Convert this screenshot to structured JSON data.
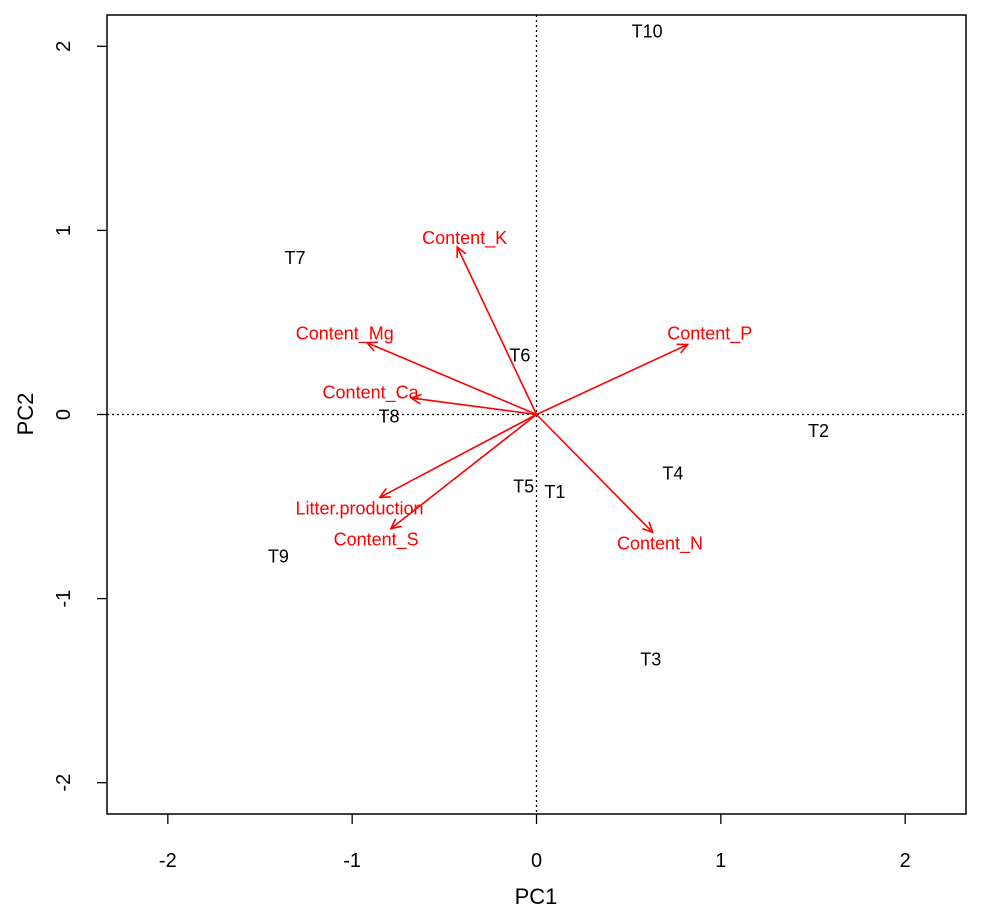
{
  "chart_data": {
    "type": "scatter",
    "subtype": "pca-biplot",
    "xlabel": "PC1",
    "ylabel": "PC2",
    "xlim": [
      -2.33,
      2.33
    ],
    "ylim": [
      -2.17,
      2.17
    ],
    "x_ticks": [
      -2,
      -1,
      0,
      1,
      2
    ],
    "y_ticks": [
      -2,
      -1,
      0,
      1,
      2
    ],
    "reference_lines": {
      "x": 0,
      "y": 0,
      "style": "dotted"
    },
    "grid": false,
    "legend": "none",
    "points": [
      {
        "label": "T10",
        "x": 0.6,
        "y": 2.08
      },
      {
        "label": "T7",
        "x": -1.31,
        "y": 0.85
      },
      {
        "label": "T6",
        "x": -0.09,
        "y": 0.32
      },
      {
        "label": "T8",
        "x": -0.8,
        "y": -0.01
      },
      {
        "label": "T2",
        "x": 1.53,
        "y": -0.09
      },
      {
        "label": "T4",
        "x": 0.74,
        "y": -0.32
      },
      {
        "label": "T5",
        "x": -0.07,
        "y": -0.39
      },
      {
        "label": "T1",
        "x": 0.1,
        "y": -0.42
      },
      {
        "label": "T9",
        "x": -1.4,
        "y": -0.77
      },
      {
        "label": "T3",
        "x": 0.62,
        "y": -1.33
      }
    ],
    "variables": [
      {
        "name": "Content_K",
        "x": -0.43,
        "y": 0.91,
        "label_x": -0.39,
        "label_y": 0.96
      },
      {
        "name": "Content_P",
        "x": 0.82,
        "y": 0.38,
        "label_x": 0.94,
        "label_y": 0.44
      },
      {
        "name": "Content_Mg",
        "x": -0.92,
        "y": 0.39,
        "label_x": -1.04,
        "label_y": 0.44
      },
      {
        "name": "Content_Ca",
        "x": -0.68,
        "y": 0.09,
        "label_x": -0.9,
        "label_y": 0.12
      },
      {
        "name": "Litter.production",
        "x": -0.85,
        "y": -0.45,
        "label_x": -0.96,
        "label_y": -0.51
      },
      {
        "name": "Content_S",
        "x": -0.79,
        "y": -0.62,
        "label_x": -0.87,
        "label_y": -0.68
      },
      {
        "name": "Content_N",
        "x": 0.63,
        "y": -0.64,
        "label_x": 0.67,
        "label_y": -0.7
      }
    ],
    "colors": {
      "points": "#000000",
      "variables": "#ff0000"
    }
  }
}
